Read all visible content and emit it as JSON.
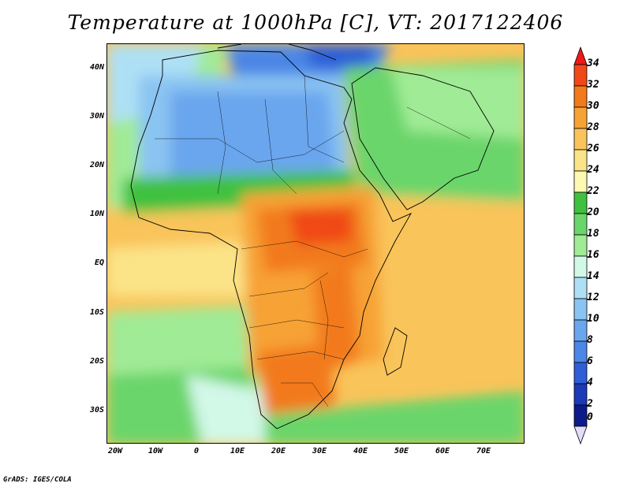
{
  "title": "Temperature at 1000hPa [C], VT: 2017122406",
  "credit": "GrADS: IGES/COLA",
  "map": {
    "lat_labels": [
      "40N",
      "30N",
      "20N",
      "10N",
      "EQ",
      "10S",
      "20S",
      "30S"
    ],
    "lon_labels": [
      "20W",
      "10W",
      "0",
      "10E",
      "20E",
      "30E",
      "40E",
      "50E",
      "60E",
      "70E"
    ]
  },
  "colorbar": {
    "labels": [
      "34",
      "32",
      "30",
      "28",
      "26",
      "24",
      "22",
      "20",
      "18",
      "16",
      "14",
      "12",
      "10",
      "8",
      "6",
      "4",
      "2",
      "0"
    ],
    "colors": [
      "#f01818",
      "#f04818",
      "#f27a1a",
      "#f7a235",
      "#f9c45a",
      "#fbe488",
      "#fdf8b2",
      "#3fc13f",
      "#6ad56a",
      "#a0eb96",
      "#d2f8e8",
      "#aee0f5",
      "#8ac4f2",
      "#6aa6ee",
      "#4c86e6",
      "#2e5fd8",
      "#1a3ab8",
      "#0c1a8a",
      "#e4dcf8"
    ]
  }
}
